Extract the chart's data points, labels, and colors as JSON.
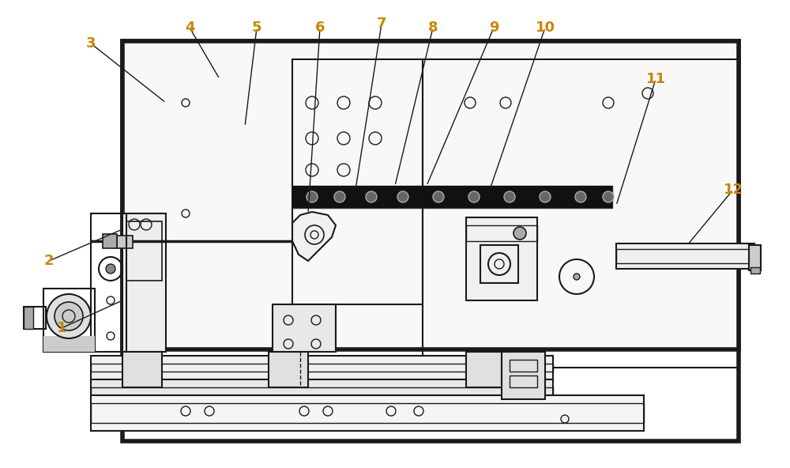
{
  "figure_width": 10.0,
  "figure_height": 5.92,
  "dpi": 100,
  "bg_color": "#ffffff",
  "line_color": "#1a1a1a",
  "label_color": "#c8860a",
  "label_fontsize": 13,
  "anno_lw": 1.0,
  "draw_lw": 1.5,
  "thick_lw": 4.0,
  "xlim": [
    0,
    1000
  ],
  "ylim": [
    0,
    592
  ]
}
